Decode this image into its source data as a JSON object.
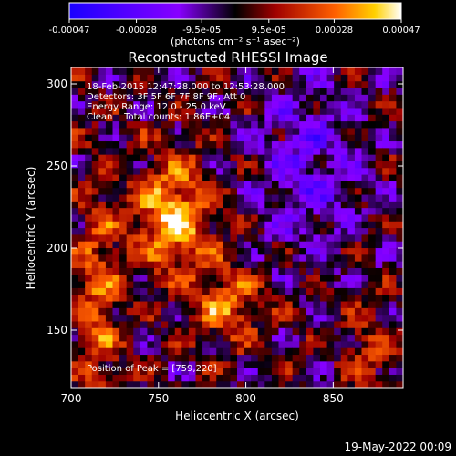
{
  "chart_data": {
    "type": "heatmap",
    "title": "Reconstructed RHESSI Image",
    "xlabel": "Heliocentric X (arcsec)",
    "ylabel": "Heliocentric Y (arcsec)",
    "x_range": [
      700,
      890
    ],
    "y_range": [
      115,
      310
    ],
    "x_ticks": [
      700,
      750,
      800,
      850
    ],
    "y_ticks": [
      150,
      200,
      250,
      300
    ],
    "colorbar": {
      "ticks": [
        "-0.00047",
        "-0.00028",
        "-9.5e-05",
        "9.5e-05",
        "0.00028",
        "0.00047"
      ],
      "tick_values": [
        -0.00047,
        -0.00028,
        -9.5e-05,
        9.5e-05,
        0.00028,
        0.00047
      ],
      "label": "(photons cm⁻² s⁻¹ asec⁻²)",
      "range": [
        -0.00047,
        0.00047
      ]
    },
    "annotations": [
      "18-Feb-2015 12:47:28.000 to 12:53:28.000",
      "Detectors: 3F 5F 6F 7F 8F 9F, Att 0",
      "Energy Range: 12.0 - 25.0 keV",
      "Clean    Total counts: 1.86E+04"
    ],
    "peak_label": "Position of Peak = [759,220]",
    "peak": [
      759,
      220
    ],
    "grid": false
  },
  "footer": {
    "date": "19-May-2022 00:09"
  },
  "colors": {
    "background": "#000000",
    "text": "#ffffff"
  }
}
